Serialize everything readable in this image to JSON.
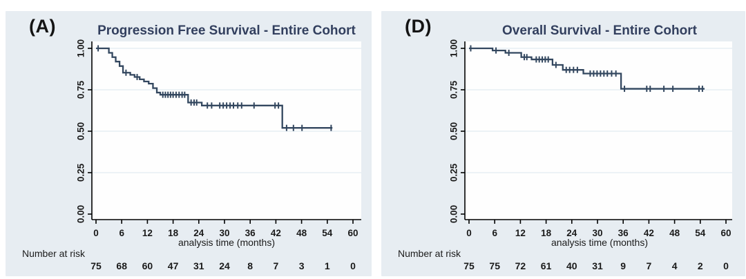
{
  "figure": {
    "panels": [
      {
        "label": "(A)",
        "title": "Progression Free Survival - Entire Cohort",
        "xlabel": "analysis time (months)",
        "risk_label": "Number at risk"
      },
      {
        "label": "(D)",
        "title": "Overall Survival - Entire Cohort",
        "xlabel": "analysis time (months)",
        "risk_label": "Number at risk"
      }
    ],
    "colors": {
      "curve": "#33475f",
      "panel_bg": "#e7edf2",
      "plot_bg": "#fefefe",
      "grid": "#e2eaf2",
      "axis": "#000000",
      "title": "#323f5e",
      "axis_text": "#1a1a1a"
    }
  },
  "chart_data": [
    {
      "type": "line",
      "subtype": "kaplan_meier_step",
      "title": "Progression Free Survival - Entire Cohort",
      "xlabel": "analysis time (months)",
      "ylabel": "",
      "xlim": [
        0,
        62
      ],
      "ylim": [
        0,
        1.0
      ],
      "x_ticks": [
        0,
        6,
        12,
        18,
        24,
        30,
        36,
        42,
        48,
        54,
        60
      ],
      "y_ticks": [
        "0.00",
        "0.25",
        "0.50",
        "0.75",
        "1.00"
      ],
      "grid": true,
      "legend": "none",
      "end_time": 55.2,
      "steps": [
        [
          0,
          1.0
        ],
        [
          3,
          0.973
        ],
        [
          3.8,
          0.947
        ],
        [
          4.6,
          0.92
        ],
        [
          5.5,
          0.893
        ],
        [
          6.3,
          0.853
        ],
        [
          8.0,
          0.84
        ],
        [
          9.0,
          0.827
        ],
        [
          10.2,
          0.813
        ],
        [
          11.2,
          0.8
        ],
        [
          12.3,
          0.787
        ],
        [
          13.3,
          0.76
        ],
        [
          14.2,
          0.733
        ],
        [
          15.0,
          0.72
        ],
        [
          21.5,
          0.673
        ],
        [
          24.7,
          0.655
        ],
        [
          43.5,
          0.52
        ]
      ],
      "censor_marks": [
        [
          0.5,
          1.0
        ],
        [
          7.0,
          0.853
        ],
        [
          9.6,
          0.827
        ],
        [
          15.6,
          0.72
        ],
        [
          16.2,
          0.72
        ],
        [
          16.8,
          0.72
        ],
        [
          17.4,
          0.72
        ],
        [
          18.0,
          0.72
        ],
        [
          18.7,
          0.72
        ],
        [
          19.4,
          0.72
        ],
        [
          20.1,
          0.72
        ],
        [
          20.7,
          0.72
        ],
        [
          22.2,
          0.673
        ],
        [
          22.9,
          0.673
        ],
        [
          23.5,
          0.673
        ],
        [
          26.0,
          0.655
        ],
        [
          27.0,
          0.655
        ],
        [
          28.9,
          0.655
        ],
        [
          29.7,
          0.655
        ],
        [
          30.5,
          0.655
        ],
        [
          31.3,
          0.655
        ],
        [
          32.1,
          0.655
        ],
        [
          33.1,
          0.655
        ],
        [
          34.0,
          0.655
        ],
        [
          36.9,
          0.655
        ],
        [
          41.8,
          0.655
        ],
        [
          42.6,
          0.655
        ],
        [
          44.5,
          0.52
        ],
        [
          46.1,
          0.52
        ],
        [
          48.1,
          0.52
        ],
        [
          54.9,
          0.52
        ]
      ],
      "number_at_risk": [
        75,
        68,
        60,
        47,
        31,
        24,
        8,
        7,
        3,
        1,
        0
      ]
    },
    {
      "type": "line",
      "subtype": "kaplan_meier_step",
      "title": "Overall Survival - Entire Cohort",
      "xlabel": "analysis time (months)",
      "ylabel": "",
      "xlim": [
        0,
        62
      ],
      "ylim": [
        0,
        1.0
      ],
      "x_ticks": [
        0,
        6,
        12,
        18,
        24,
        30,
        36,
        42,
        48,
        54,
        60
      ],
      "y_ticks": [
        "0.00",
        "0.25",
        "0.50",
        "0.75",
        "1.00"
      ],
      "grid": true,
      "legend": "none",
      "end_time": 55.0,
      "steps": [
        [
          0,
          1.0
        ],
        [
          5.5,
          0.987
        ],
        [
          8.5,
          0.973
        ],
        [
          12.2,
          0.947
        ],
        [
          14.6,
          0.933
        ],
        [
          19.5,
          0.9
        ],
        [
          21.9,
          0.87
        ],
        [
          26.7,
          0.848
        ],
        [
          35.5,
          0.756
        ]
      ],
      "censor_marks": [
        [
          0.4,
          1.0
        ],
        [
          6.3,
          0.987
        ],
        [
          9.3,
          0.973
        ],
        [
          12.9,
          0.947
        ],
        [
          13.5,
          0.947
        ],
        [
          15.7,
          0.933
        ],
        [
          16.4,
          0.933
        ],
        [
          17.1,
          0.933
        ],
        [
          17.8,
          0.933
        ],
        [
          18.5,
          0.933
        ],
        [
          20.3,
          0.9
        ],
        [
          22.7,
          0.87
        ],
        [
          23.5,
          0.87
        ],
        [
          24.4,
          0.87
        ],
        [
          25.3,
          0.87
        ],
        [
          28.3,
          0.848
        ],
        [
          29.1,
          0.848
        ],
        [
          29.9,
          0.848
        ],
        [
          30.7,
          0.848
        ],
        [
          31.5,
          0.848
        ],
        [
          32.3,
          0.848
        ],
        [
          33.3,
          0.848
        ],
        [
          34.3,
          0.848
        ],
        [
          36.3,
          0.756
        ],
        [
          41.5,
          0.756
        ],
        [
          42.3,
          0.756
        ],
        [
          45.5,
          0.756
        ],
        [
          47.6,
          0.756
        ],
        [
          53.7,
          0.756
        ],
        [
          54.5,
          0.756
        ]
      ],
      "number_at_risk": [
        75,
        75,
        72,
        61,
        40,
        31,
        9,
        7,
        4,
        2,
        0
      ]
    }
  ]
}
